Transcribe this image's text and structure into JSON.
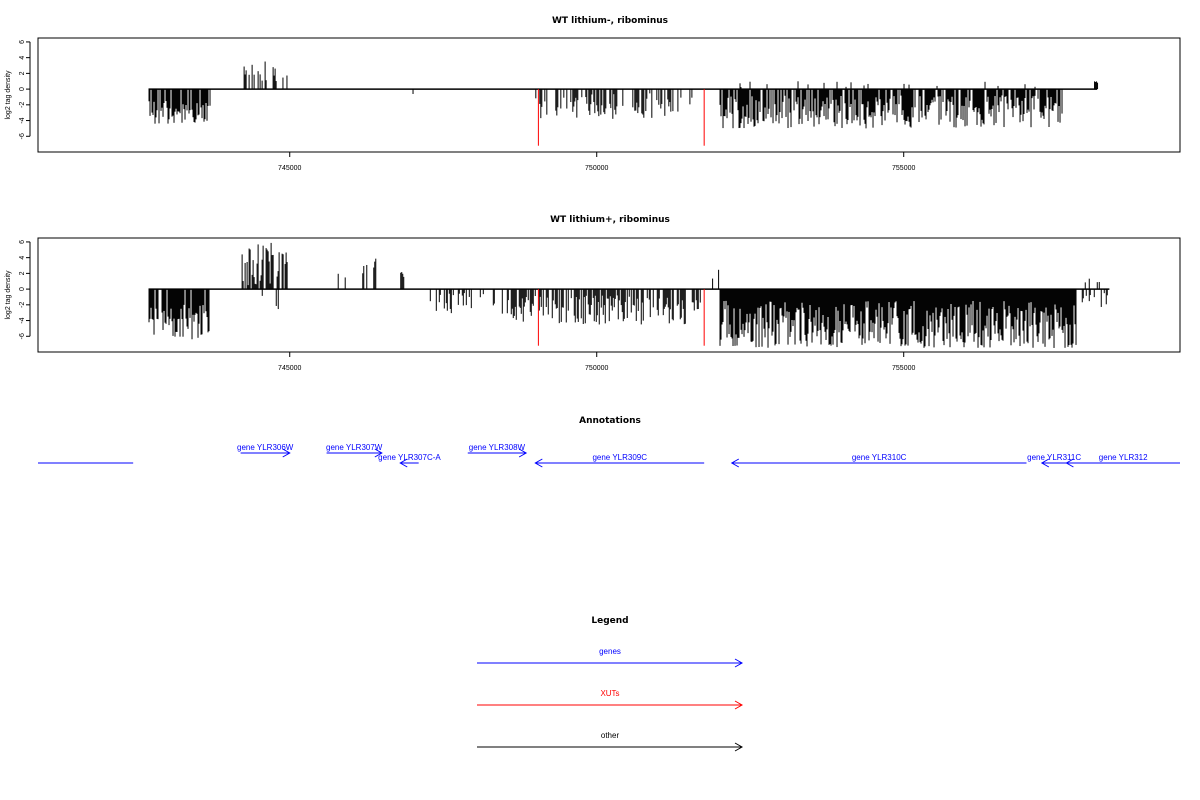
{
  "colors": {
    "gene": "#0000ff",
    "xut": "#ff0000",
    "other": "#000000",
    "signal": "#000000",
    "marker": "#ff0000"
  },
  "chart_data": [
    {
      "type": "bar",
      "title": "WT lithium-, ribominus",
      "ylabel": "log2 tag density",
      "xlim": [
        740900,
        759500
      ],
      "ylim": [
        -8,
        6.5
      ],
      "yticks": [
        6,
        4,
        2,
        0,
        -2,
        -4,
        -6
      ],
      "xticks": [
        745000,
        750000,
        755000
      ],
      "xtick_labels": [
        "745000",
        "750000",
        "755000"
      ],
      "markers": [
        749050,
        751750
      ],
      "segments": [
        {
          "from": 742700,
          "to": 743700,
          "density": 0.85,
          "polarity": -1,
          "min": 1.5,
          "max": 4.5
        },
        {
          "from": 744200,
          "to": 744800,
          "density": 0.45,
          "polarity": 1,
          "min": 0.7,
          "max": 4
        },
        {
          "from": 744800,
          "to": 745300,
          "density": 0.06,
          "polarity": 1,
          "min": 1,
          "max": 3.2
        },
        {
          "from": 747000,
          "to": 747100,
          "density": 0.2,
          "polarity": -1,
          "min": 0.5,
          "max": 1
        },
        {
          "from": 749000,
          "to": 751200,
          "density": 0.45,
          "polarity": -1,
          "min": 0.5,
          "max": 3.8
        },
        {
          "from": 751200,
          "to": 751700,
          "density": 0.25,
          "polarity": -1,
          "min": 0.5,
          "max": 3
        },
        {
          "from": 752000,
          "to": 757600,
          "density": 0.8,
          "polarity": -1,
          "min": 0.8,
          "max": 5
        },
        {
          "from": 752000,
          "to": 757600,
          "density": 0.05,
          "polarity": 1,
          "min": 0.2,
          "max": 1
        },
        {
          "from": 758100,
          "to": 758150,
          "density": 1,
          "polarity": 1,
          "min": 0.8,
          "max": 1
        }
      ]
    },
    {
      "type": "bar",
      "title": "WT lithium+, ribominus",
      "ylabel": "log2 tag density",
      "xlim": [
        740900,
        759500
      ],
      "ylim": [
        -8,
        6.5
      ],
      "yticks": [
        6,
        4,
        2,
        0,
        -2,
        -4,
        -6
      ],
      "xticks": [
        745000,
        750000,
        755000
      ],
      "xtick_labels": [
        "745000",
        "750000",
        "755000"
      ],
      "markers": [
        749050,
        751750
      ],
      "segments": [
        {
          "from": 742700,
          "to": 743700,
          "density": 0.95,
          "polarity": -1,
          "min": 2,
          "max": 6.5
        },
        {
          "from": 744200,
          "to": 744950,
          "density": 0.6,
          "polarity": 1,
          "min": 0.5,
          "max": 6
        },
        {
          "from": 744300,
          "to": 744900,
          "density": 0.15,
          "polarity": -1,
          "min": 0.5,
          "max": 3
        },
        {
          "from": 745700,
          "to": 746000,
          "density": 0.1,
          "polarity": 1,
          "min": 0.5,
          "max": 2
        },
        {
          "from": 746100,
          "to": 746400,
          "density": 0.15,
          "polarity": 1,
          "min": 1.5,
          "max": 4
        },
        {
          "from": 746800,
          "to": 746850,
          "density": 1,
          "polarity": 1,
          "min": 1.5,
          "max": 2.2
        },
        {
          "from": 747200,
          "to": 748600,
          "density": 0.3,
          "polarity": -1,
          "min": 0.5,
          "max": 3.5
        },
        {
          "from": 748600,
          "to": 751700,
          "density": 0.65,
          "polarity": -1,
          "min": 0.8,
          "max": 4.5
        },
        {
          "from": 751700,
          "to": 752100,
          "density": 0.15,
          "polarity": 1,
          "min": 1,
          "max": 2.8
        },
        {
          "from": 752000,
          "to": 757800,
          "density": 1,
          "polarity": -1,
          "min": 1.5,
          "max": 7.5
        },
        {
          "from": 757900,
          "to": 758350,
          "density": 0.4,
          "polarity": -1,
          "min": 0.5,
          "max": 2.5
        },
        {
          "from": 757900,
          "to": 758300,
          "density": 0.1,
          "polarity": 1,
          "min": 0.5,
          "max": 1.8
        }
      ]
    }
  ],
  "annotations": {
    "title": "Annotations",
    "genes": [
      {
        "label": "gene YLR306W",
        "from": 744200,
        "to": 745000,
        "strand": "+",
        "row": 0
      },
      {
        "label": "gene YLR307W",
        "from": 745600,
        "to": 746500,
        "strand": "+",
        "row": 0
      },
      {
        "label": "gene YLR307C-A",
        "from": 746800,
        "to": 747100,
        "strand": "-",
        "row": 1
      },
      {
        "label": "gene YLR308W",
        "from": 747900,
        "to": 748850,
        "strand": "+",
        "row": 0
      },
      {
        "label": "gene YLR309C",
        "from": 749000,
        "to": 751750,
        "strand": "-",
        "row": 1
      },
      {
        "label": "gene YLR310C",
        "from": 752200,
        "to": 757000,
        "strand": "-",
        "row": 1
      },
      {
        "label": "gene YLR311C",
        "from": 757250,
        "to": 757650,
        "strand": "-",
        "row": 1
      },
      {
        "label": "gene YLR312",
        "from": 757650,
        "to": 759500,
        "strand": "-",
        "row": 1
      },
      {
        "label": "",
        "from": 740900,
        "to": 742450,
        "strand": "-",
        "row": 1
      }
    ]
  },
  "legend": {
    "title": "Legend",
    "items": [
      {
        "label": "genes",
        "type": "gene"
      },
      {
        "label": "XUTs",
        "type": "xut"
      },
      {
        "label": "other",
        "type": "other"
      }
    ]
  }
}
